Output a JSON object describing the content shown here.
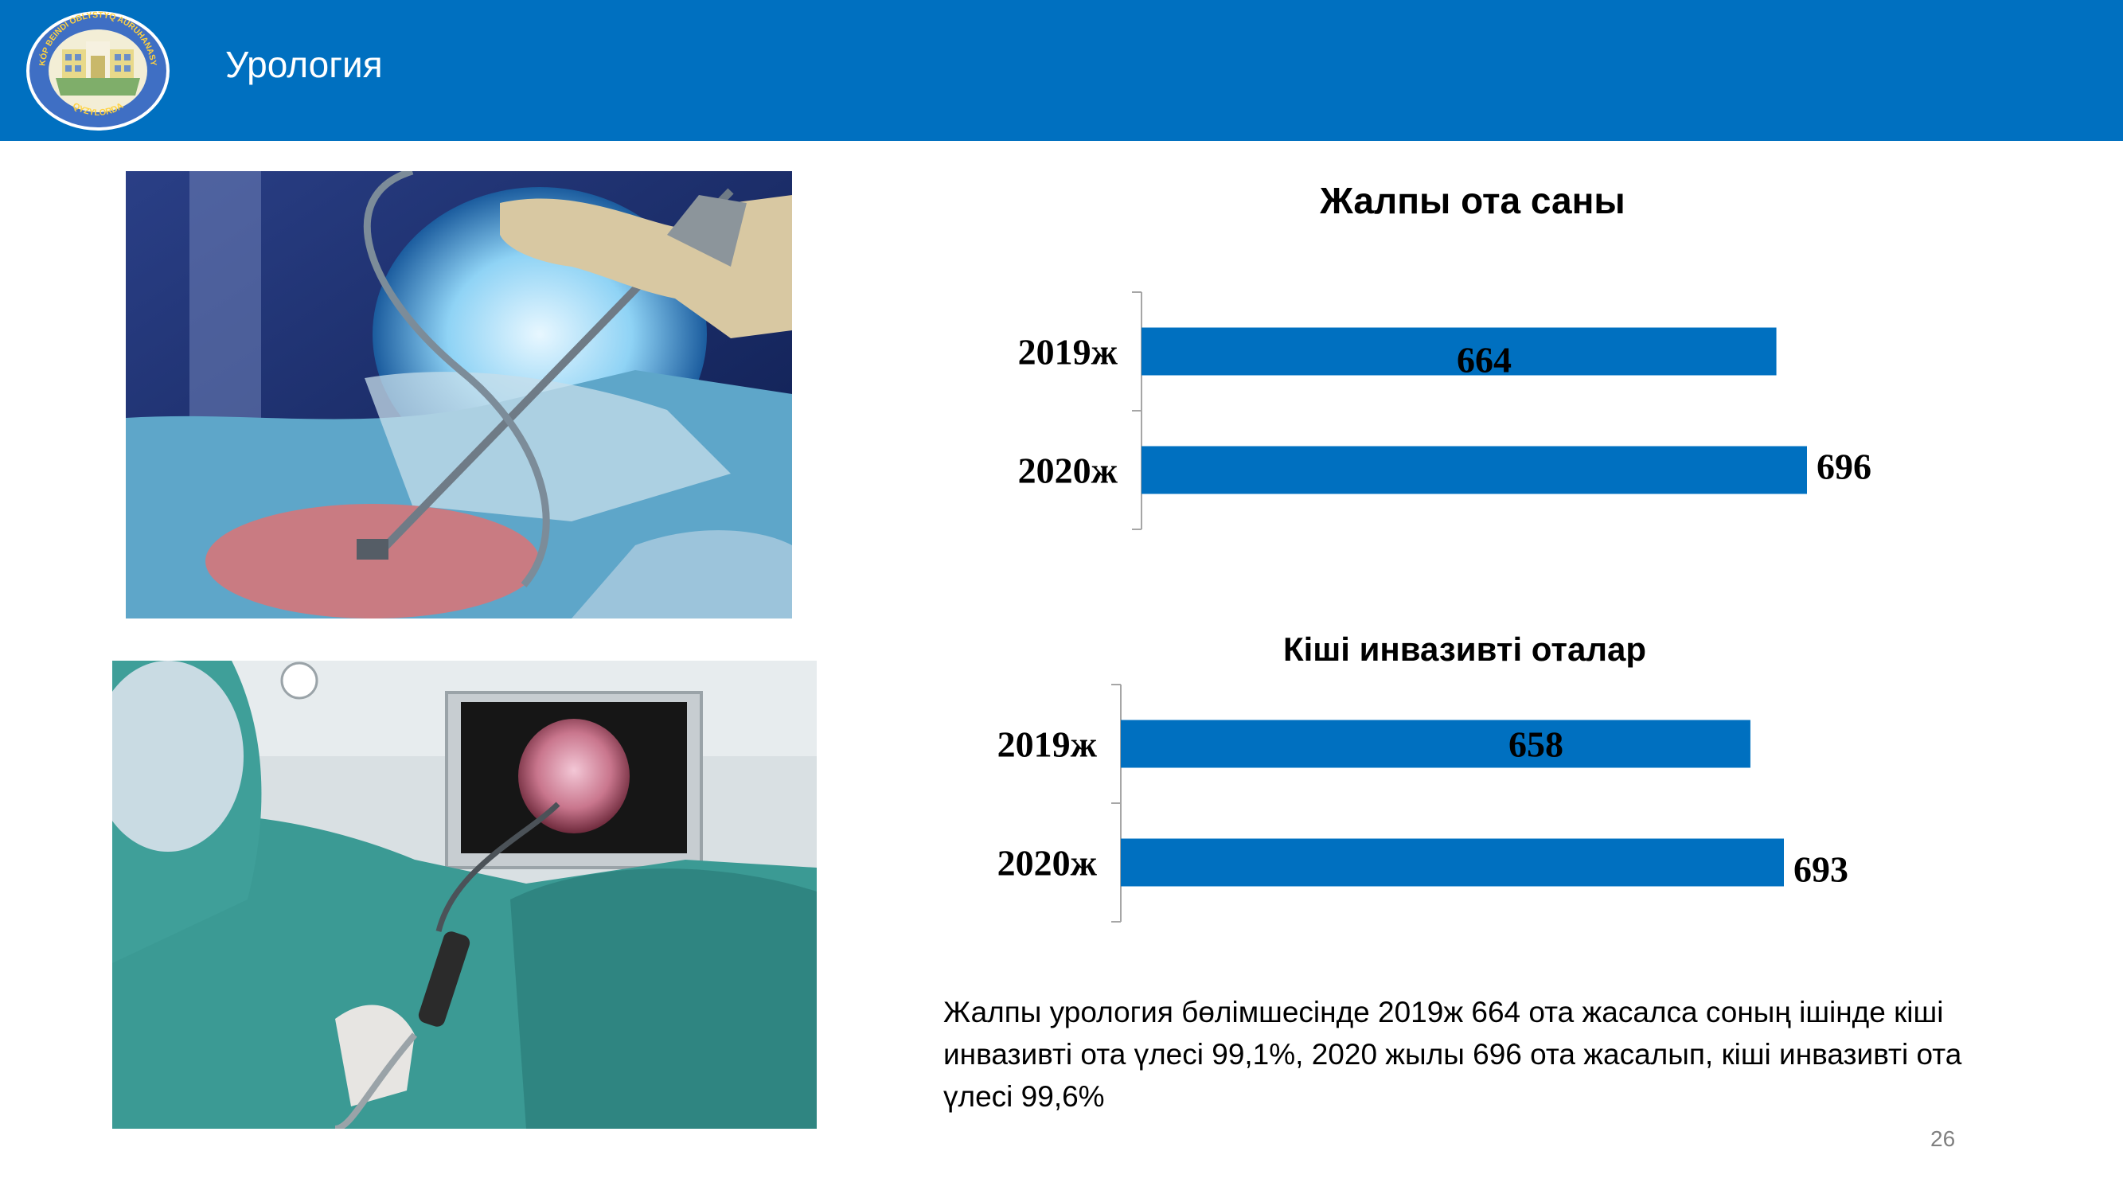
{
  "header": {
    "title": "Урология",
    "logo": {
      "ring_text": "KÓP BEINDI OBLYSTYQ AURUHANASY",
      "bottom_text": "QYZYLORDA"
    }
  },
  "colors": {
    "header": "#0070C0",
    "bar": "#0070C0"
  },
  "chart_data": [
    {
      "type": "bar",
      "orientation": "horizontal",
      "title": "Жалпы ота саны",
      "categories": [
        "2019ж",
        "2020ж"
      ],
      "values": [
        664,
        696
      ],
      "xlim": [
        0,
        696
      ]
    },
    {
      "type": "bar",
      "orientation": "horizontal",
      "title": "Кіші инвазивті оталар",
      "categories": [
        "2019ж",
        "2020ж"
      ],
      "values": [
        658,
        693
      ],
      "xlim": [
        0,
        693
      ]
    }
  ],
  "caption": "Жалпы урология бөлімшесінде 2019ж 664 ота жасалса соның ішінде кіші инвазивті ота үлесі 99,1%, 2020 жылы 696 ота жасалып, кіші инвазивті ота үлесі 99,6%",
  "page_number": "26"
}
